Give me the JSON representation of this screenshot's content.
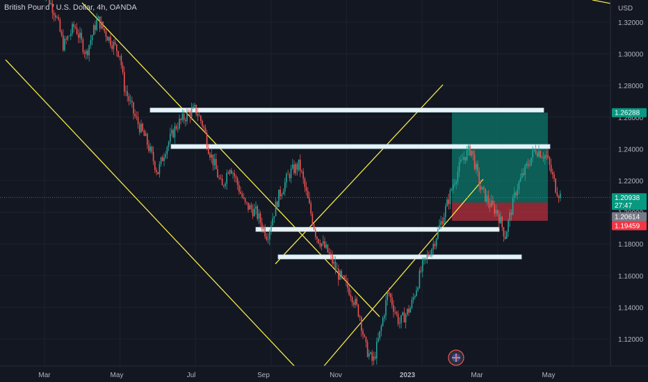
{
  "header": {
    "symbol_title": "British Pound / U.S. Dollar, 4h, OANDA"
  },
  "chart_data": {
    "type": "candlestick",
    "title": "British Pound / U.S. Dollar, 4h, OANDA",
    "currency_label": "USD",
    "x_ticks": [
      "Mar",
      "May",
      "Jul",
      "Sep",
      "Nov",
      "2023",
      "Mar",
      "May"
    ],
    "y_ticks": [
      "1.32000",
      "1.30000",
      "1.28000",
      "1.26000",
      "1.24000",
      "1.22000",
      "1.20000",
      "1.18000",
      "1.16000",
      "1.14000",
      "1.12000"
    ],
    "ylim": [
      1.1,
      1.335
    ],
    "price_markers": [
      {
        "label": "1.26288",
        "value": 1.26288,
        "color": "#089981"
      },
      {
        "label": "1.20938",
        "value": 1.20938,
        "color": "#089981",
        "countdown": "27:47"
      },
      {
        "label": "1.20614",
        "value": 1.20614,
        "color": "#787b86"
      },
      {
        "label": "1.19459",
        "value": 1.19459,
        "color": "#f23645"
      }
    ],
    "horizontal_levels": [
      1.2645,
      1.2415,
      1.1892,
      1.1718
    ],
    "position": {
      "entry": 1.20614,
      "take_profit": 1.26288,
      "stop_loss": 1.19459
    },
    "price_path": [
      [
        0.0,
        1.34
      ],
      [
        0.3,
        1.325
      ],
      [
        0.5,
        1.305
      ],
      [
        0.8,
        1.318
      ],
      [
        1.1,
        1.3
      ],
      [
        1.4,
        1.322
      ],
      [
        1.7,
        1.31
      ],
      [
        2.0,
        1.3
      ],
      [
        2.1,
        1.28
      ],
      [
        2.4,
        1.26
      ],
      [
        2.7,
        1.245
      ],
      [
        3.0,
        1.225
      ],
      [
        3.2,
        1.24
      ],
      [
        3.5,
        1.255
      ],
      [
        3.8,
        1.262
      ],
      [
        4.0,
        1.265
      ],
      [
        4.2,
        1.255
      ],
      [
        4.35,
        1.24
      ],
      [
        4.5,
        1.23
      ],
      [
        4.7,
        1.215
      ],
      [
        4.9,
        1.23
      ],
      [
        5.0,
        1.225
      ],
      [
        5.3,
        1.205
      ],
      [
        5.6,
        1.2
      ],
      [
        5.9,
        1.185
      ],
      [
        6.2,
        1.21
      ],
      [
        6.5,
        1.225
      ],
      [
        6.75,
        1.23
      ],
      [
        7.0,
        1.205
      ],
      [
        7.2,
        1.185
      ],
      [
        7.5,
        1.175
      ],
      [
        7.8,
        1.16
      ],
      [
        8.1,
        1.15
      ],
      [
        8.35,
        1.135
      ],
      [
        8.5,
        1.115
      ],
      [
        8.7,
        1.105
      ],
      [
        8.9,
        1.125
      ],
      [
        9.1,
        1.15
      ],
      [
        9.4,
        1.13
      ],
      [
        9.7,
        1.14
      ],
      [
        10.0,
        1.165
      ],
      [
        10.3,
        1.18
      ],
      [
        10.6,
        1.2
      ],
      [
        10.85,
        1.22
      ],
      [
        11.1,
        1.235
      ],
      [
        11.3,
        1.24
      ],
      [
        11.55,
        1.215
      ],
      [
        11.8,
        1.205
      ],
      [
        12.0,
        1.2
      ],
      [
        12.2,
        1.185
      ],
      [
        12.5,
        1.215
      ],
      [
        12.8,
        1.23
      ],
      [
        13.0,
        1.24
      ],
      [
        13.3,
        1.235
      ],
      [
        13.55,
        1.215
      ],
      [
        13.7,
        1.209
      ]
    ],
    "annotations": [
      "🇬🇧"
    ]
  }
}
